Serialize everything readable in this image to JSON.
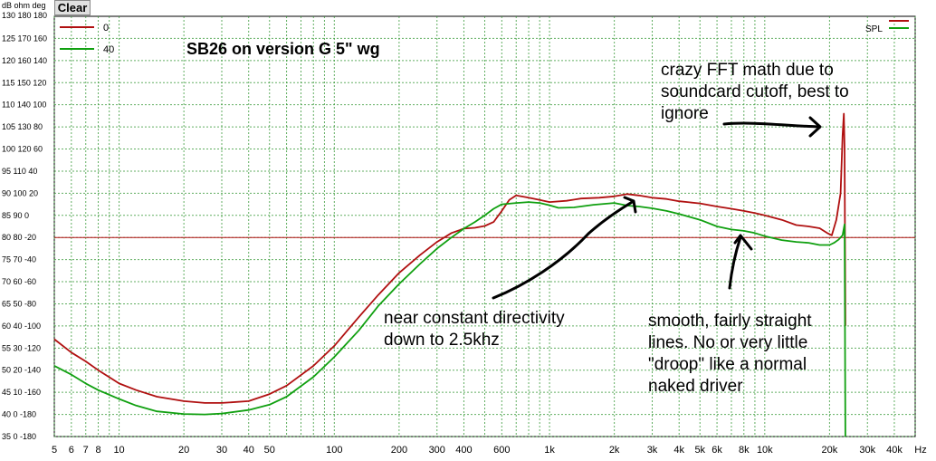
{
  "toolbar": {
    "clear_label": "Clear"
  },
  "chart_data": {
    "type": "line",
    "title": "SB26 on version G  5\" wg",
    "x_scale": "log",
    "xlim": [
      5,
      50000
    ],
    "ylim": [
      35,
      130
    ],
    "axis_units": {
      "y1": "dB",
      "y2": "ohm",
      "y3": "deg",
      "x": "Hz"
    },
    "y_ticks": [
      {
        "db": "130",
        "ohm": "180",
        "deg": "180",
        "value": 130
      },
      {
        "db": "125",
        "ohm": "170",
        "deg": "160",
        "value": 125
      },
      {
        "db": "120",
        "ohm": "160",
        "deg": "140",
        "value": 120
      },
      {
        "db": "115",
        "ohm": "150",
        "deg": "120",
        "value": 115
      },
      {
        "db": "110",
        "ohm": "140",
        "deg": "100",
        "value": 110
      },
      {
        "db": "105",
        "ohm": "130",
        "deg": "80",
        "value": 105
      },
      {
        "db": "100",
        "ohm": "120",
        "deg": "60",
        "value": 100
      },
      {
        "db": "95",
        "ohm": "110",
        "deg": "40",
        "value": 95
      },
      {
        "db": "90",
        "ohm": "100",
        "deg": "20",
        "value": 90
      },
      {
        "db": "85",
        "ohm": "90",
        "deg": "0",
        "value": 85
      },
      {
        "db": "80",
        "ohm": "80",
        "deg": "-20",
        "value": 80
      },
      {
        "db": "75",
        "ohm": "70",
        "deg": "-40",
        "value": 75
      },
      {
        "db": "70",
        "ohm": "60",
        "deg": "-60",
        "value": 70
      },
      {
        "db": "65",
        "ohm": "50",
        "deg": "-80",
        "value": 65
      },
      {
        "db": "60",
        "ohm": "40",
        "deg": "-100",
        "value": 60
      },
      {
        "db": "55",
        "ohm": "30",
        "deg": "-120",
        "value": 55
      },
      {
        "db": "50",
        "ohm": "20",
        "deg": "-140",
        "value": 50
      },
      {
        "db": "45",
        "ohm": "10",
        "deg": "-160",
        "value": 45
      },
      {
        "db": "40",
        "ohm": "0",
        "deg": "-180",
        "value": 40
      }
    ],
    "y_tick_labels": [
      "125 170 160",
      "120 160 140",
      "115 150 120",
      "110 140 100",
      "105 130 80",
      "100 120 60",
      "95 110 40",
      "90 100 20",
      "85 90 0",
      "80 80 -20",
      "75 70 -40",
      "70 60 -60",
      "65 50 -80",
      "60 40 -100",
      "55 30 -120",
      "50 20 -140",
      "45 10 -160",
      "40 0 -180",
      "35 0 -180"
    ],
    "y_tick_values": [
      125,
      120,
      115,
      110,
      105,
      100,
      95,
      90,
      85,
      80,
      75,
      70,
      65,
      60,
      55,
      50,
      45,
      40,
      35
    ],
    "x_tick_labels": [
      "5",
      "6",
      "7",
      "8",
      "10",
      "20",
      "30",
      "40",
      "50",
      "100",
      "200",
      "300",
      "400",
      "600",
      "1k",
      "2k",
      "3k",
      "4k",
      "5k",
      "6k",
      "8k",
      "10k",
      "20k",
      "30k",
      "40k",
      "Hz"
    ],
    "x_tick_values": [
      5,
      6,
      7,
      8,
      10,
      20,
      30,
      40,
      50,
      100,
      200,
      300,
      400,
      600,
      1000,
      2000,
      3000,
      4000,
      5000,
      6000,
      8000,
      10000,
      20000,
      30000,
      40000,
      50000
    ],
    "corner_label": "dB  ohm deg",
    "reference_line_y": 80,
    "series": [
      {
        "name": "0",
        "color": "#b01010",
        "points": [
          [
            5,
            57
          ],
          [
            6,
            54
          ],
          [
            7,
            52
          ],
          [
            8,
            50
          ],
          [
            10,
            47
          ],
          [
            12,
            45.5
          ],
          [
            15,
            44
          ],
          [
            20,
            43
          ],
          [
            25,
            42.6
          ],
          [
            30,
            42.6
          ],
          [
            40,
            43
          ],
          [
            50,
            44.6
          ],
          [
            60,
            46.5
          ],
          [
            80,
            51
          ],
          [
            100,
            55.5
          ],
          [
            130,
            62
          ],
          [
            160,
            67
          ],
          [
            200,
            72
          ],
          [
            250,
            76
          ],
          [
            300,
            79
          ],
          [
            350,
            81
          ],
          [
            400,
            82
          ],
          [
            450,
            82.2
          ],
          [
            500,
            82.6
          ],
          [
            550,
            83.5
          ],
          [
            600,
            86
          ],
          [
            650,
            88.5
          ],
          [
            700,
            89.5
          ],
          [
            800,
            89
          ],
          [
            900,
            88.5
          ],
          [
            1000,
            88
          ],
          [
            1200,
            88.3
          ],
          [
            1400,
            88.8
          ],
          [
            1700,
            89
          ],
          [
            2000,
            89.3
          ],
          [
            2300,
            89.8
          ],
          [
            2600,
            89.5
          ],
          [
            3000,
            89
          ],
          [
            3500,
            88.7
          ],
          [
            4000,
            88.2
          ],
          [
            5000,
            87.7
          ],
          [
            6000,
            87
          ],
          [
            7000,
            86.5
          ],
          [
            8000,
            86
          ],
          [
            9000,
            85.5
          ],
          [
            10000,
            85
          ],
          [
            12000,
            84
          ],
          [
            14000,
            82.8
          ],
          [
            16000,
            82.5
          ],
          [
            18000,
            82.1
          ],
          [
            19500,
            81
          ],
          [
            20500,
            80.5
          ],
          [
            21500,
            84
          ],
          [
            22500,
            90
          ],
          [
            23000,
            103
          ],
          [
            23300,
            108
          ],
          [
            23500,
            100
          ],
          [
            23700,
            60
          ]
        ]
      },
      {
        "name": "40",
        "color": "#10a010",
        "points": [
          [
            5,
            51
          ],
          [
            6,
            49
          ],
          [
            7,
            47
          ],
          [
            8,
            45.5
          ],
          [
            10,
            43.5
          ],
          [
            12,
            42
          ],
          [
            15,
            40.7
          ],
          [
            20,
            40.1
          ],
          [
            25,
            40
          ],
          [
            30,
            40.2
          ],
          [
            40,
            41
          ],
          [
            50,
            42.2
          ],
          [
            60,
            44
          ],
          [
            80,
            48.5
          ],
          [
            100,
            53
          ],
          [
            130,
            59
          ],
          [
            160,
            64.5
          ],
          [
            200,
            69.5
          ],
          [
            250,
            74
          ],
          [
            300,
            77.5
          ],
          [
            350,
            80
          ],
          [
            400,
            82
          ],
          [
            450,
            83.5
          ],
          [
            500,
            85
          ],
          [
            550,
            86.5
          ],
          [
            600,
            87.5
          ],
          [
            700,
            87.8
          ],
          [
            800,
            88
          ],
          [
            900,
            87.8
          ],
          [
            1000,
            87.3
          ],
          [
            1100,
            86.7
          ],
          [
            1300,
            86.8
          ],
          [
            1600,
            87.4
          ],
          [
            2000,
            87.8
          ],
          [
            2300,
            87.2
          ],
          [
            2600,
            87
          ],
          [
            3000,
            86.6
          ],
          [
            3500,
            86
          ],
          [
            4000,
            85.3
          ],
          [
            5000,
            84
          ],
          [
            6000,
            82.5
          ],
          [
            7000,
            81.8
          ],
          [
            8000,
            81.5
          ],
          [
            9000,
            81
          ],
          [
            10000,
            80.3
          ],
          [
            12000,
            79.4
          ],
          [
            14000,
            79
          ],
          [
            16000,
            78.8
          ],
          [
            18000,
            78.3
          ],
          [
            20000,
            78.3
          ],
          [
            21000,
            78.8
          ],
          [
            22000,
            79.5
          ],
          [
            23000,
            80.5
          ],
          [
            23500,
            83
          ],
          [
            23700,
            35
          ]
        ]
      }
    ],
    "legend_right": "SPL",
    "annotations": [
      "crazy FFT math due to\nsoundcard cutoff, best to\nignore",
      "near constant directivity\ndown to 2.5khz",
      "smooth, fairly straight\nlines. No or very little\n\"droop\" like a normal\nnaked driver"
    ]
  }
}
